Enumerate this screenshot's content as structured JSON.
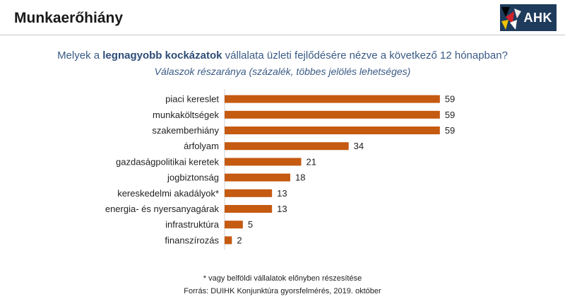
{
  "header": {
    "title": "Munkaerőhiány",
    "logo_text": "AHK"
  },
  "question": {
    "prefix": "Melyek a ",
    "bold": "legnagyobb kockázatok",
    "suffix": " vállalata üzleti fejlődésére nézve a következő 12 hónapban?"
  },
  "subtitle": "Válaszok részaránya (százalék, többes jelölés lehetséges)",
  "footnote": "* vagy belföldi vállalatok előnyben részesítése",
  "source": "Forrás: DUIHK Konjunktúra gyorsfelmérés, 2019. október",
  "colors": {
    "bar": "#c55a11",
    "axis": "#d0d0d0",
    "logo_bg": "#1f3b5c"
  },
  "chart_data": {
    "type": "bar",
    "orientation": "horizontal",
    "categories": [
      "piaci kereslet",
      "munkaköltségek",
      "szakemberhiány",
      "árfolyam",
      "gazdaságpolitikai keretek",
      "jogbiztonság",
      "kereskedelmi akadályok*",
      "energia- és nyersanyagárak",
      "infrastruktúra",
      "finanszírozás"
    ],
    "values": [
      59,
      59,
      59,
      34,
      21,
      18,
      13,
      13,
      5,
      2
    ],
    "data_labels": true,
    "xlim": [
      0,
      60
    ],
    "grid": false,
    "legend": "none"
  }
}
